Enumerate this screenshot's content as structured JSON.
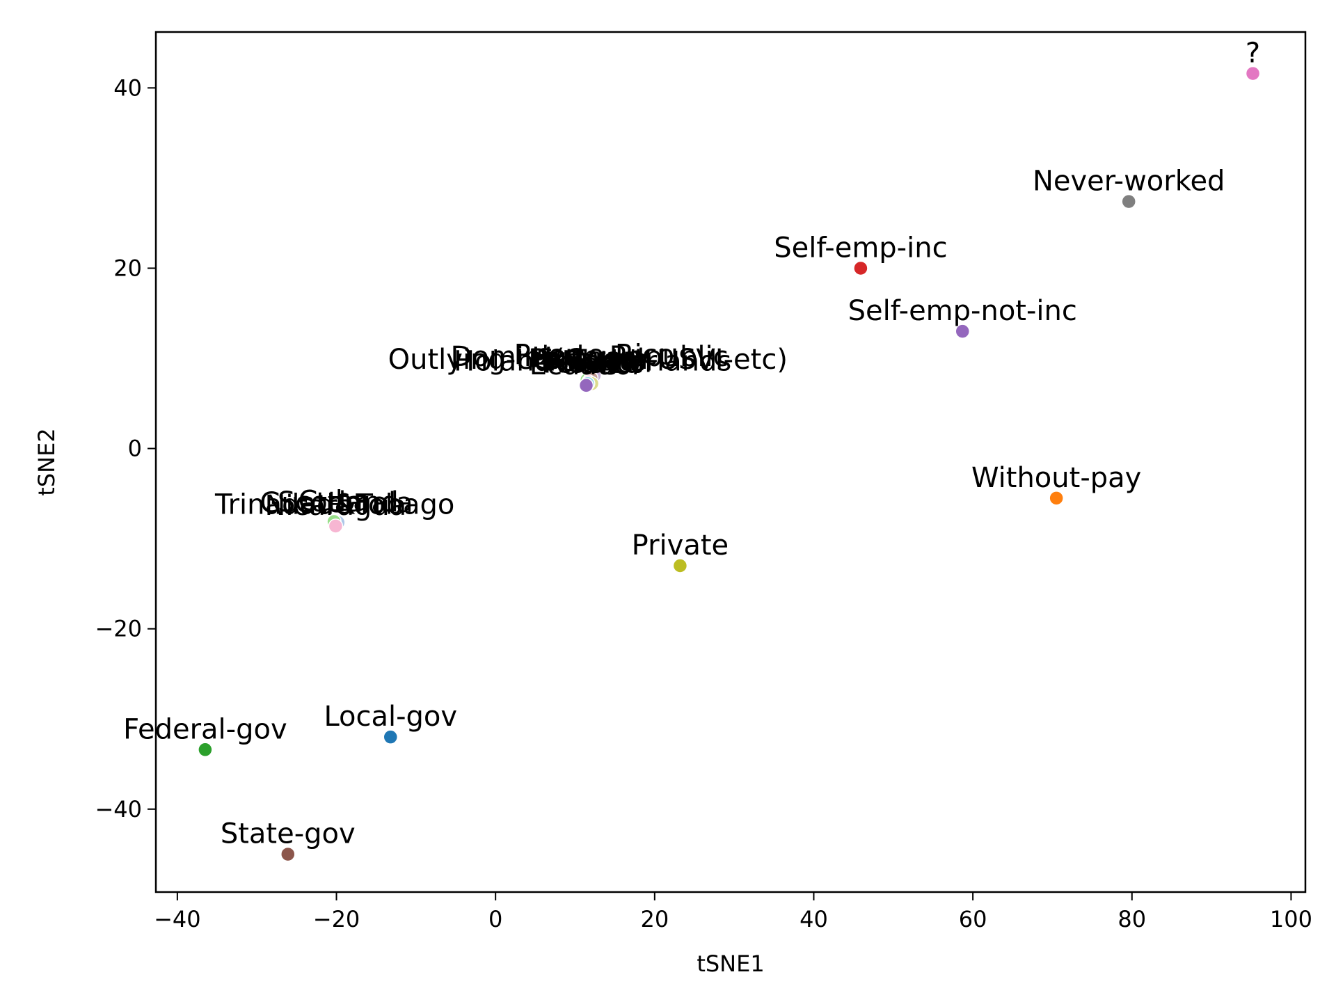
{
  "chart_data": {
    "type": "scatter",
    "title": "",
    "xlabel": "tSNE1",
    "ylabel": "tSNE2",
    "xlim": [
      -42.7,
      101.8
    ],
    "ylim": [
      -49.2,
      46.2
    ],
    "xticks": [
      -40,
      -20,
      0,
      20,
      40,
      60,
      80,
      100
    ],
    "yticks": [
      -40,
      -20,
      0,
      20,
      40
    ],
    "xtick_labels": [
      "−40",
      "−20",
      "0",
      "20",
      "40",
      "60",
      "80",
      "100"
    ],
    "ytick_labels": [
      "−40",
      "−20",
      "0",
      "20",
      "40"
    ],
    "grid": false,
    "legend": "none",
    "points": [
      {
        "label": "?",
        "x": 95.2,
        "y": 41.6,
        "color": "#e377c2"
      },
      {
        "label": "Never-worked",
        "x": 79.6,
        "y": 27.4,
        "color": "#7f7f7f"
      },
      {
        "label": "Self-emp-inc",
        "x": 45.9,
        "y": 20.0,
        "color": "#d62728"
      },
      {
        "label": "Self-emp-not-inc",
        "x": 58.7,
        "y": 13.0,
        "color": "#9467bd"
      },
      {
        "label": "Without-pay",
        "x": 70.5,
        "y": -5.5,
        "color": "#ff7f0e"
      },
      {
        "label": "Private",
        "x": 23.2,
        "y": -13.0,
        "color": "#bcbd22"
      },
      {
        "label": "Local-gov",
        "x": -13.2,
        "y": -32.0,
        "color": "#1f77b4"
      },
      {
        "label": "Federal-gov",
        "x": -36.5,
        "y": -33.4,
        "color": "#2ca02c"
      },
      {
        "label": "State-gov",
        "x": -26.1,
        "y": -45.0,
        "color": "#8c564b"
      },
      {
        "label": "Outlying-US(Guam-USVI-etc)",
        "x": 11.6,
        "y": 7.6,
        "color": "#17becf"
      },
      {
        "label": "Holand-Netherlands",
        "x": 12.2,
        "y": 7.4,
        "color": "#aec7e8"
      },
      {
        "label": "Dominican-Republic",
        "x": 11.8,
        "y": 7.9,
        "color": "#ff9896"
      },
      {
        "label": "Puerto-Rico",
        "x": 12.4,
        "y": 8.1,
        "color": "#c5b0d5"
      },
      {
        "label": "Portugal",
        "x": 11.5,
        "y": 7.6,
        "color": "#98df8a"
      },
      {
        "label": "Hungary",
        "x": 12.0,
        "y": 7.8,
        "color": "#c49c94"
      },
      {
        "label": "Ireland",
        "x": 11.7,
        "y": 7.4,
        "color": "#f7b6d2"
      },
      {
        "label": "Mexico",
        "x": 12.1,
        "y": 7.2,
        "color": "#dbdb8d"
      },
      {
        "label": "Poland",
        "x": 11.6,
        "y": 7.2,
        "color": "#9edae5"
      },
      {
        "label": "Ecuador",
        "x": 11.4,
        "y": 7.0,
        "color": "#9467bd"
      },
      {
        "label": "Trinadad&Tobago",
        "x": -20.2,
        "y": -8.5,
        "color": "#ff6f91"
      },
      {
        "label": "Guatemala",
        "x": -20.0,
        "y": -8.3,
        "color": "#c5b0d5"
      },
      {
        "label": "Scotland",
        "x": -19.8,
        "y": -8.2,
        "color": "#aec7e8"
      },
      {
        "label": "Cuba",
        "x": -20.3,
        "y": -8.1,
        "color": "#98df8a"
      },
      {
        "label": "Nicaragua",
        "x": -20.1,
        "y": -8.6,
        "color": "#f7b6d2"
      }
    ]
  }
}
